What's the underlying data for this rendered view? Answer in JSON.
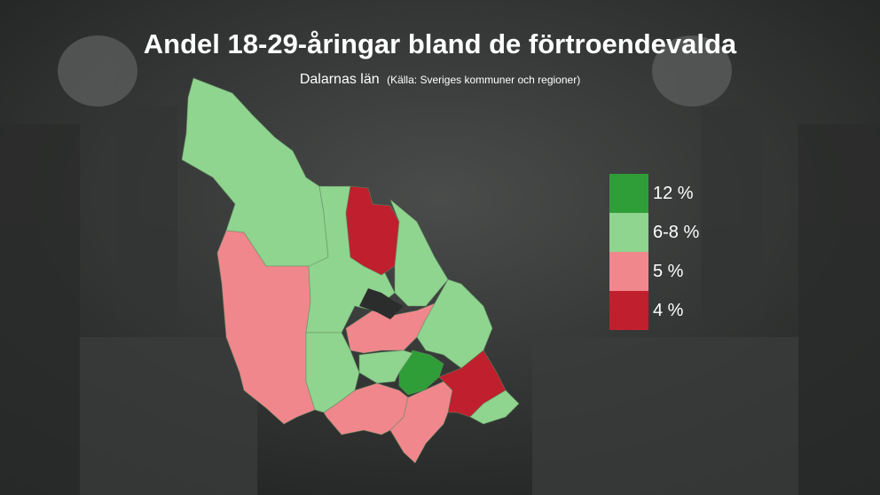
{
  "title": "Andel 18-29-åringar bland de förtroendevalda",
  "subtitle": "Dalarnas län",
  "source": "(Källa: Sveriges kommuner och regioner)",
  "legend": [
    {
      "label": "12 %",
      "color": "#2f9e38"
    },
    {
      "label": "6-8 %",
      "color": "#8fd48f"
    },
    {
      "label": "5 %",
      "color": "#f0878c"
    },
    {
      "label": "4 %",
      "color": "#c01f2e"
    }
  ]
}
